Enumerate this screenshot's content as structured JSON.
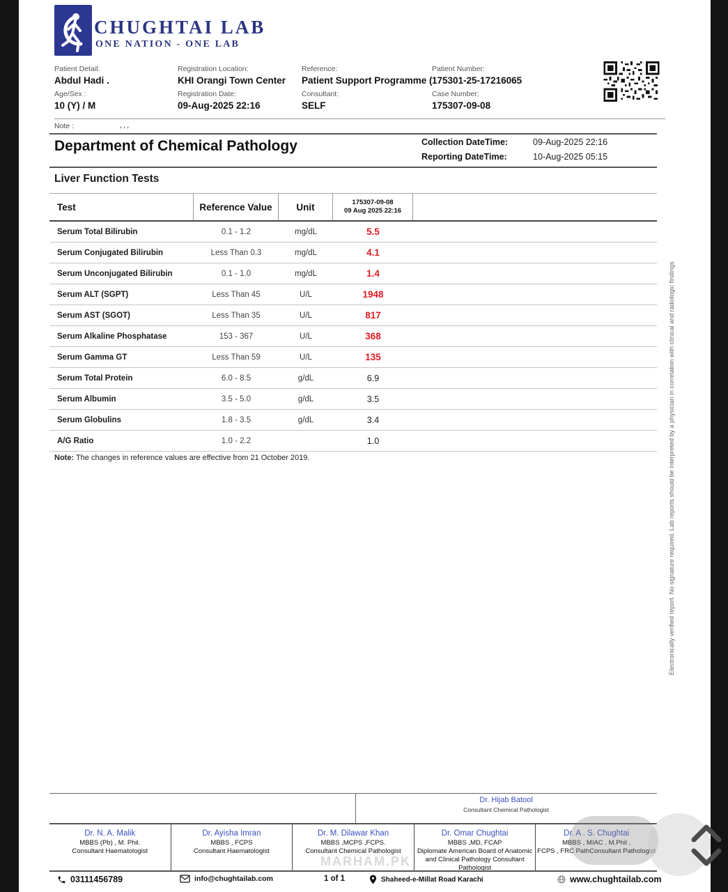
{
  "brand": {
    "name": "CHUGHTAI LAB",
    "tagline": "ONE NATION - ONE LAB",
    "navy": "#2b3580",
    "logo_blue": "#2c3792"
  },
  "patient": {
    "patient_detail_label": "Patient Detail:",
    "name": "Abdul Hadi .",
    "age_sex_label": "Age/Sex :",
    "age_sex": "10 (Y) / M",
    "registration_location_label": "Registration Location:",
    "registration_location": "KHI Orangi Town Center",
    "registration_date_label": "Registration Date:",
    "registration_date": "09-Aug-2025 22:16",
    "reference_label": "Reference:",
    "reference": "Patient Support Programme (",
    "consultant_label": "Consultant:",
    "consultant": "SELF",
    "patient_number_label": "Patient Number:",
    "patient_number": "175301-25-17216065",
    "case_number_label": "Case Number:",
    "case_number": "175307-09-08",
    "note_label": "Note :",
    "note_dots": ",,,"
  },
  "report": {
    "department": "Department of Chemical Pathology",
    "collection_label": "Collection DateTime:",
    "collection": "09-Aug-2025 22:16",
    "reporting_label": "Reporting DateTime:",
    "reporting": "10-Aug-2025 05:15",
    "section": "Liver Function Tests",
    "abnormal_color": "#e01b22",
    "table": {
      "headers": {
        "test": "Test",
        "ref": "Reference Value",
        "unit": "Unit",
        "result_line1": "175307-09-08",
        "result_line2": "09 Aug 2025 22:16"
      },
      "rows": [
        {
          "test": "Serum Total Bilirubin",
          "ref": "0.1  -  1.2",
          "unit": "mg/dL",
          "result": "5.5",
          "abnormal": true
        },
        {
          "test": "Serum Conjugated Bilirubin",
          "ref": "Less Than 0.3",
          "unit": "mg/dL",
          "result": "4.1",
          "abnormal": true
        },
        {
          "test": "Serum Unconjugated Bilirubin",
          "ref": "0.1  -  1.0",
          "unit": "mg/dL",
          "result": "1.4",
          "abnormal": true
        },
        {
          "test": "Serum ALT (SGPT)",
          "ref": "Less Than 45",
          "unit": "U/L",
          "result": "1948",
          "abnormal": true
        },
        {
          "test": "Serum AST (SGOT)",
          "ref": "Less Than 35",
          "unit": "U/L",
          "result": "817",
          "abnormal": true
        },
        {
          "test": "Serum Alkaline Phosphatase",
          "ref": "153  -  367",
          "unit": "U/L",
          "result": "368",
          "abnormal": true
        },
        {
          "test": "Serum Gamma GT",
          "ref": "Less Than 59",
          "unit": "U/L",
          "result": "135",
          "abnormal": true
        },
        {
          "test": "Serum Total Protein",
          "ref": "6.0  -  8.5",
          "unit": "g/dL",
          "result": "6.9",
          "abnormal": false
        },
        {
          "test": "Serum Albumin",
          "ref": "3.5  -  5.0",
          "unit": "g/dL",
          "result": "3.5",
          "abnormal": false
        },
        {
          "test": "Serum Globulins",
          "ref": "1.8  -  3.5",
          "unit": "g/dL",
          "result": "3.4",
          "abnormal": false
        },
        {
          "test": "A/G Ratio",
          "ref": "1.0  -  2.2",
          "unit": "",
          "result": "1.0",
          "abnormal": false
        }
      ]
    },
    "note_bold": "Note:",
    "note_text": " The changes in reference values are  effective from 21 October 2019."
  },
  "side_note": "Electronically verified report. No signature required. Lab reports should be interpreted by a physician in correlation with clinical and radiologic findings",
  "footer": {
    "name_color": "#3c4fc1",
    "verifier": {
      "name": "Dr. Hijab Batool",
      "role": "Consultant Chemical Pathologist"
    },
    "doctors": [
      {
        "name": "Dr. N. A. Malik",
        "details": [
          "MBBS (Pb) , M. Phil.",
          "Consultant Haematologist"
        ]
      },
      {
        "name": "Dr. Ayisha Imran",
        "details": [
          "MBBS , FCPS",
          "Consultant Haematologist"
        ]
      },
      {
        "name": "Dr. M. Dilawar Khan",
        "details": [
          "MBBS ,MCPS ,FCPS.",
          "Consultant Chemical Pathologist"
        ]
      },
      {
        "name": "Dr. Omar Chughtai",
        "details": [
          "MBBS ,MD, FCAP",
          "Diplomate American Board of Anatomic",
          "and Clinical Pathology Consultant",
          "Pathologist"
        ]
      },
      {
        "name": "Dr. A . S. Chughtai",
        "details": [
          "MBBS , MIAC . M.Phil ,",
          "FCPS , FRC PathConsultant Pathologist"
        ]
      }
    ],
    "contact": {
      "phone": "03111456789",
      "email": "info@chughtailab.com",
      "page": "1 of 1",
      "address": "Shaheed-e-Millat Road Karachi",
      "website": "www.chughtailab.com"
    }
  },
  "watermark": "MARHAM.PK",
  "icons": {
    "logo": "walking-person-logo",
    "qr": "qr-code",
    "phone": "phone-icon",
    "email": "mail-icon",
    "location": "location-pin-icon",
    "website": "globe-icon",
    "scroll": "chevron-up-down-icon"
  }
}
